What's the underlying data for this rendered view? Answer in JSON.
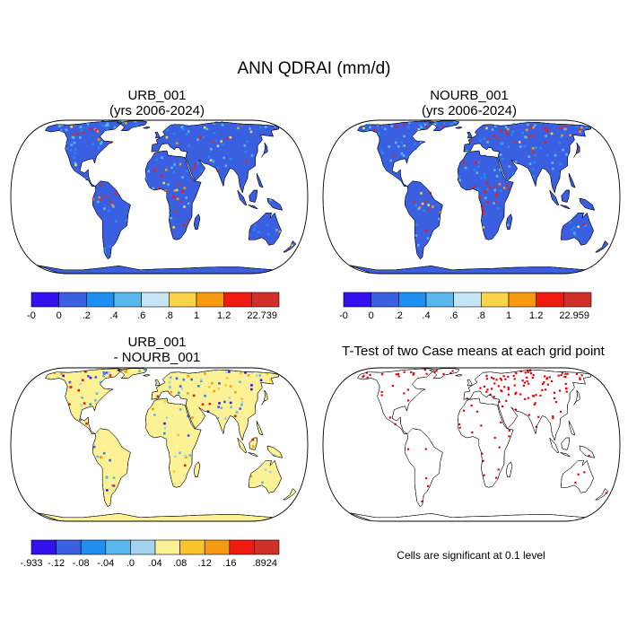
{
  "title": "ANN QDRAI (mm/d)",
  "panels": [
    {
      "id": "urb",
      "title_line1": "URB_001",
      "title_line2": "(yrs 2006-2024)",
      "colorbar": {
        "labels": [
          "-0",
          "0",
          ".2",
          ".4",
          ".6",
          ".8",
          "1",
          "1.2",
          "22.739"
        ],
        "colors": [
          "#3311ee",
          "#3a5fe0",
          "#1e8ef0",
          "#5ab8ee",
          "#c4e6f4",
          "#fbd34a",
          "#f79a12",
          "#ef1a10",
          "#d03028"
        ]
      }
    },
    {
      "id": "nourb",
      "title_line1": "NOURB_001",
      "title_line2": "(yrs 2006-2024)",
      "colorbar": {
        "labels": [
          "-0",
          "0",
          ".2",
          ".4",
          ".6",
          ".8",
          "1",
          "1.2",
          "22.959"
        ],
        "colors": [
          "#3311ee",
          "#3a5fe0",
          "#1e8ef0",
          "#5ab8ee",
          "#c4e6f4",
          "#fbd34a",
          "#f79a12",
          "#ef1a10",
          "#d03028"
        ]
      }
    },
    {
      "id": "diff",
      "title_line1": "URB_001",
      "title_line2": "- NOURB_001",
      "colorbar": {
        "labels": [
          "-.933",
          "-.12",
          "-.08",
          "-.04",
          ".0",
          ".04",
          ".08",
          ".12",
          ".16",
          ".8924"
        ],
        "colors": [
          "#3311ee",
          "#3a5fe0",
          "#1e8ef0",
          "#5ab8ee",
          "#a3d3ee",
          "#fdf196",
          "#fbc52a",
          "#f79a12",
          "#ef1a10",
          "#d03028"
        ]
      }
    },
    {
      "id": "ttest",
      "title": "T-Test of two Case means at each grid point",
      "note": "Cells are significant at 0.1 level"
    }
  ]
}
